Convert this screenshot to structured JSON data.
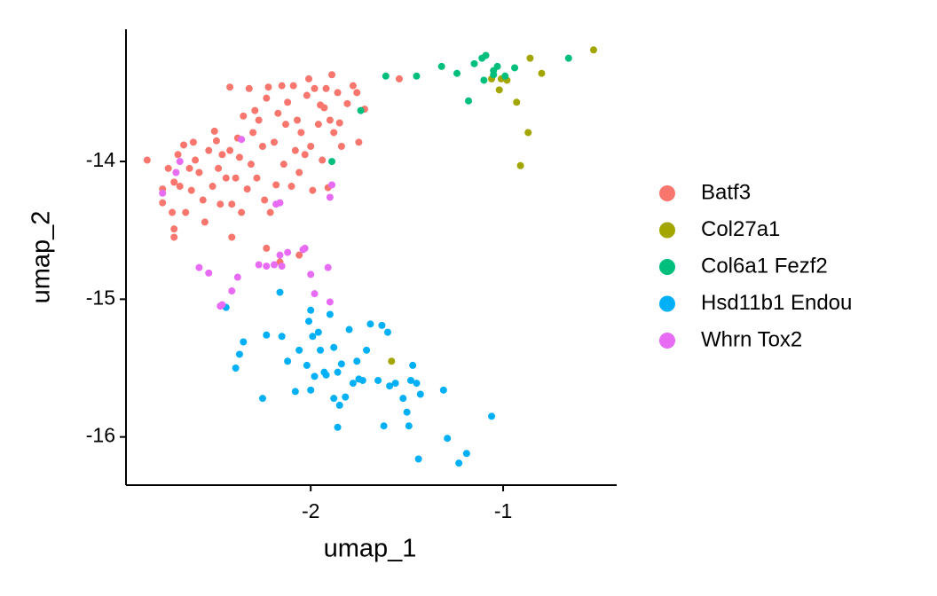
{
  "chart_data": {
    "type": "scatter",
    "x_label": "umap_1",
    "y_label": "umap_2",
    "xlim": [
      -2.96,
      -0.41
    ],
    "ylim": [
      -16.35,
      -13.04
    ],
    "xticks": [
      -2,
      -1
    ],
    "yticks": [
      -14,
      -15,
      -16
    ],
    "grid": false,
    "legend": "right",
    "series": [
      {
        "name": "Batf3",
        "color": "#F8766D",
        "x": [
          -2.85,
          -2.77,
          -2.77,
          -2.74,
          -2.72,
          -2.71,
          -2.71,
          -2.71,
          -2.69,
          -2.68,
          -2.66,
          -2.65,
          -2.63,
          -2.62,
          -2.61,
          -2.6,
          -2.58,
          -2.56,
          -2.55,
          -2.53,
          -2.51,
          -2.5,
          -2.49,
          -2.48,
          -2.47,
          -2.46,
          -2.44,
          -2.42,
          -2.41,
          -2.41,
          -2.39,
          -2.38,
          -2.37,
          -2.36,
          -2.35,
          -2.33,
          -2.32,
          -2.31,
          -2.3,
          -2.29,
          -2.28,
          -2.27,
          -2.25,
          -2.24,
          -2.23,
          -2.22,
          -2.21,
          -2.19,
          -2.18,
          -2.17,
          -2.15,
          -2.14,
          -2.13,
          -2.12,
          -2.1,
          -2.09,
          -2.08,
          -2.07,
          -2.06,
          -2.05,
          -2.03,
          -2.02,
          -2.01,
          -2.0,
          -1.99,
          -1.98,
          -1.96,
          -1.95,
          -1.94,
          -1.93,
          -1.92,
          -1.91,
          -1.9,
          -1.89,
          -1.88,
          -1.86,
          -1.85,
          -1.84,
          -1.81,
          -1.78,
          -1.76,
          -1.75,
          -1.72,
          -1.54,
          -2.06,
          -2.23,
          -2.16,
          -2.42
        ],
        "values": [
          -13.99,
          -14.3,
          -14.2,
          -14.05,
          -14.37,
          -14.49,
          -14.55,
          -14.15,
          -13.95,
          -14.18,
          -13.88,
          -14.37,
          -14.05,
          -14.21,
          -13.86,
          -13.99,
          -14.08,
          -14.28,
          -14.44,
          -13.92,
          -14.18,
          -13.78,
          -13.85,
          -14.05,
          -14.31,
          -13.95,
          -14.12,
          -13.92,
          -14.31,
          -14.55,
          -14.12,
          -13.83,
          -13.97,
          -14.37,
          -13.67,
          -14.2,
          -13.47,
          -14.02,
          -13.79,
          -13.63,
          -14.12,
          -13.7,
          -13.89,
          -14.28,
          -13.54,
          -13.46,
          -14.37,
          -13.86,
          -14.17,
          -13.65,
          -13.45,
          -14.02,
          -13.73,
          -13.57,
          -14.18,
          -13.45,
          -13.92,
          -13.7,
          -14.08,
          -13.79,
          -13.95,
          -13.52,
          -13.4,
          -13.89,
          -14.21,
          -13.47,
          -13.73,
          -13.59,
          -13.99,
          -13.61,
          -13.47,
          -14.19,
          -13.7,
          -13.37,
          -13.79,
          -13.5,
          -13.72,
          -13.89,
          -13.58,
          -13.45,
          -13.5,
          -13.86,
          -13.62,
          -13.4,
          -14.68,
          -14.63,
          -14.73,
          -13.46
        ]
      },
      {
        "name": "Col27a1",
        "color": "#A3A500",
        "x": [
          -0.86,
          -0.53,
          -0.8,
          -0.93,
          -0.87,
          -0.91,
          -1.01,
          -0.98,
          -1.02,
          -1.06,
          -1.58
        ],
        "values": [
          -13.25,
          -13.19,
          -13.36,
          -13.57,
          -13.79,
          -14.03,
          -13.4,
          -13.41,
          -13.48,
          -13.4,
          -15.45
        ]
      },
      {
        "name": "Col6a1 Fezf2",
        "color": "#00BF7D",
        "x": [
          -1.61,
          -1.45,
          -1.32,
          -1.24,
          -1.18,
          -1.15,
          -1.11,
          -1.1,
          -1.05,
          -1.03,
          -0.99,
          -0.94,
          -0.66,
          -1.74,
          -1.89,
          -1.09,
          -1.05
        ],
        "values": [
          -13.38,
          -13.38,
          -13.31,
          -13.36,
          -13.56,
          -13.29,
          -13.25,
          -13.41,
          -13.34,
          -13.31,
          -13.38,
          -13.32,
          -13.25,
          -13.63,
          -14.0,
          -13.23,
          -13.37
        ]
      },
      {
        "name": "Hsd11b1 Endou",
        "color": "#00B0F6",
        "x": [
          -2.44,
          -2.39,
          -2.37,
          -2.35,
          -2.25,
          -2.23,
          -2.16,
          -2.15,
          -2.12,
          -2.08,
          -2.06,
          -2.02,
          -2.01,
          -2.0,
          -2.0,
          -1.99,
          -1.98,
          -1.96,
          -1.95,
          -1.93,
          -1.92,
          -1.9,
          -1.88,
          -1.88,
          -1.86,
          -1.85,
          -1.84,
          -1.82,
          -1.8,
          -1.78,
          -1.76,
          -1.75,
          -1.73,
          -1.71,
          -1.69,
          -1.65,
          -1.63,
          -1.62,
          -1.6,
          -1.59,
          -1.56,
          -1.52,
          -1.49,
          -1.48,
          -1.47,
          -1.45,
          -1.43,
          -1.31,
          -1.29,
          -1.19,
          -1.23,
          -1.44,
          -1.06,
          -1.5,
          -1.86
        ],
        "values": [
          -15.06,
          -15.5,
          -15.4,
          -15.31,
          -15.72,
          -15.26,
          -14.95,
          -15.27,
          -15.45,
          -15.67,
          -15.37,
          -15.48,
          -15.16,
          -15.66,
          -15.08,
          -15.27,
          -15.56,
          -15.24,
          -15.37,
          -15.53,
          -15.55,
          -15.11,
          -15.35,
          -15.72,
          -15.53,
          -15.77,
          -15.47,
          -15.71,
          -15.22,
          -15.61,
          -15.45,
          -15.58,
          -15.59,
          -15.37,
          -15.18,
          -15.59,
          -15.19,
          -15.92,
          -15.24,
          -15.63,
          -15.61,
          -15.72,
          -15.92,
          -15.59,
          -15.48,
          -15.61,
          -15.69,
          -15.66,
          -16.01,
          -16.12,
          -16.19,
          -16.16,
          -15.85,
          -15.82,
          -15.93
        ]
      },
      {
        "name": "Whrn Tox2",
        "color": "#E76BF3",
        "x": [
          -2.77,
          -2.7,
          -2.68,
          -2.58,
          -2.53,
          -2.47,
          -2.41,
          -2.38,
          -2.36,
          -2.27,
          -2.23,
          -2.19,
          -2.16,
          -2.15,
          -2.12,
          -2.04,
          -2.03,
          -2.0,
          -1.98,
          -1.9,
          -1.91,
          -1.89,
          -1.9,
          -2.16,
          -2.46,
          -2.18
        ],
        "values": [
          -14.23,
          -14.08,
          -14.0,
          -14.77,
          -14.81,
          -15.05,
          -14.94,
          -14.84,
          -13.84,
          -14.75,
          -14.76,
          -14.75,
          -14.3,
          -14.76,
          -14.66,
          -14.64,
          -14.63,
          -14.82,
          -14.96,
          -15.02,
          -14.77,
          -14.17,
          -14.26,
          -14.68,
          -15.04,
          -14.31
        ]
      }
    ]
  }
}
